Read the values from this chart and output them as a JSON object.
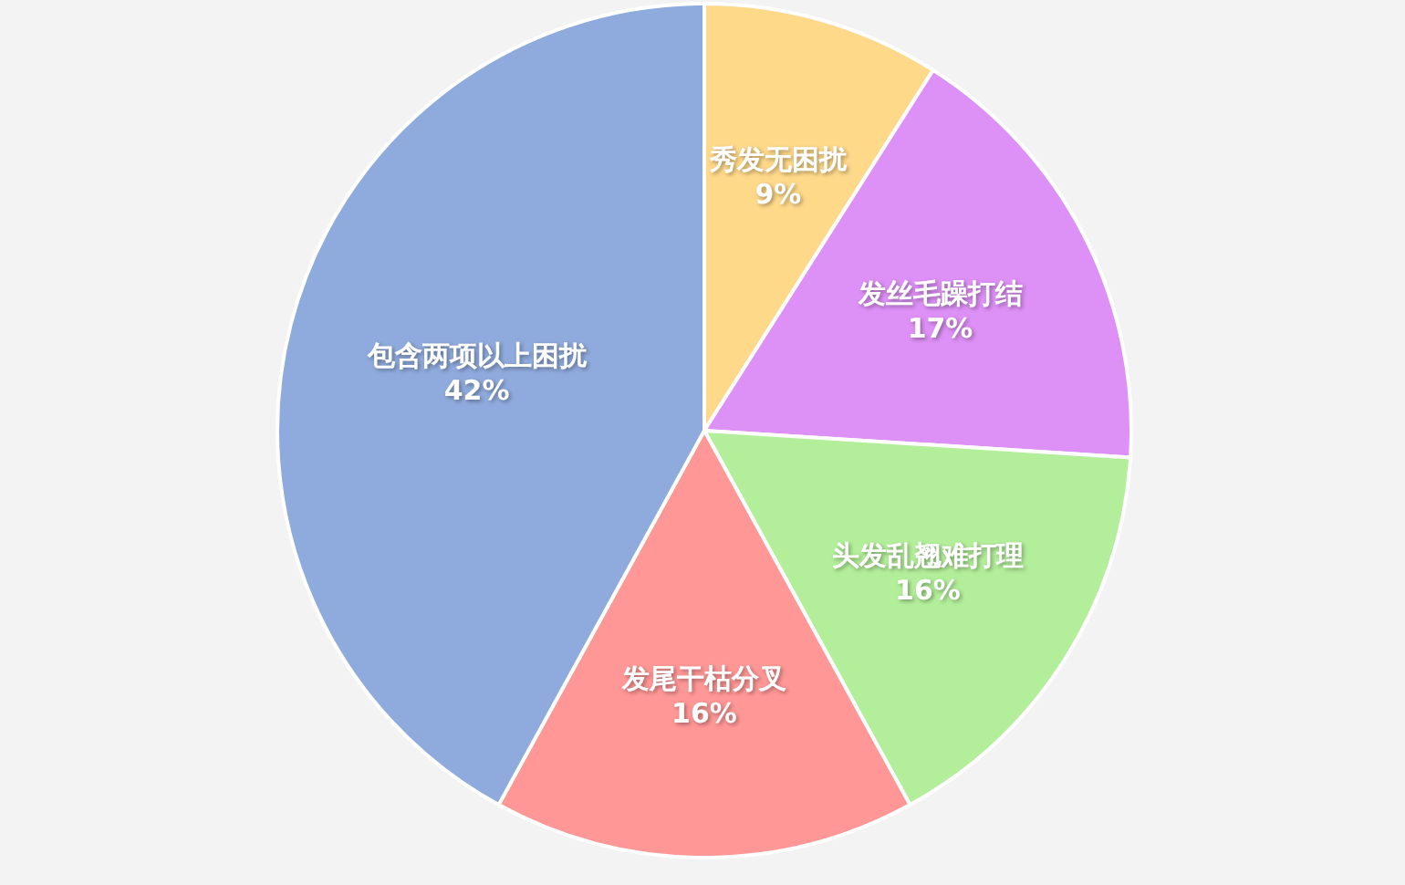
{
  "chart_data": {
    "type": "pie",
    "value_labels": [
      "9%",
      "17%",
      "16%",
      "16%",
      "42%"
    ],
    "categories": [
      "秀发无困扰",
      "发丝毛躁打结",
      "头发乱翘难打理",
      "发尾干枯分叉",
      "包含两项以上困扰"
    ],
    "values": [
      9,
      17,
      16,
      16,
      42
    ],
    "colors": [
      "#ffd98a",
      "#dd90f5",
      "#b3ef9a",
      "#ff9796",
      "#8faadc"
    ]
  }
}
